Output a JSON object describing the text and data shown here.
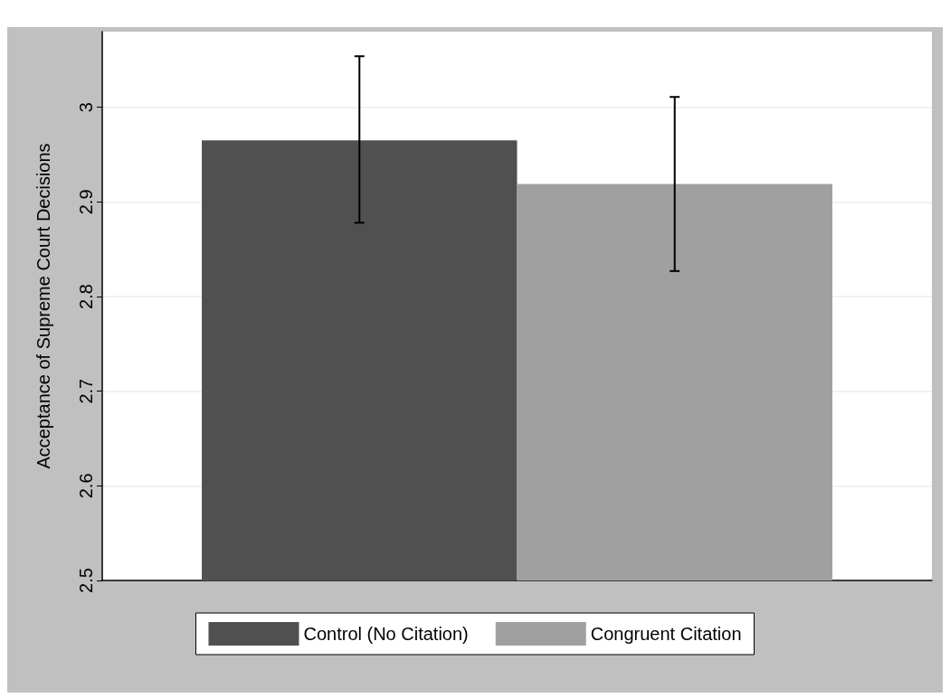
{
  "chart_data": {
    "type": "bar",
    "ylabel": "Acceptance of Supreme Court Decisions",
    "categories": [
      null
    ],
    "series": [
      {
        "name": "Control (No Citation)",
        "color": "#505050",
        "values": [
          2.965
        ],
        "errors": [
          [
            2.878,
            3.054
          ]
        ]
      },
      {
        "name": "Congruent Citation",
        "color": "#a0a0a0",
        "values": [
          2.919
        ],
        "errors": [
          [
            2.827,
            3.011
          ]
        ]
      }
    ],
    "ylim": [
      2.5,
      3.08
    ],
    "yticks": [
      2.5,
      2.6,
      2.7,
      2.8,
      2.9,
      3
    ],
    "grid": "y",
    "legend": "bottom"
  }
}
